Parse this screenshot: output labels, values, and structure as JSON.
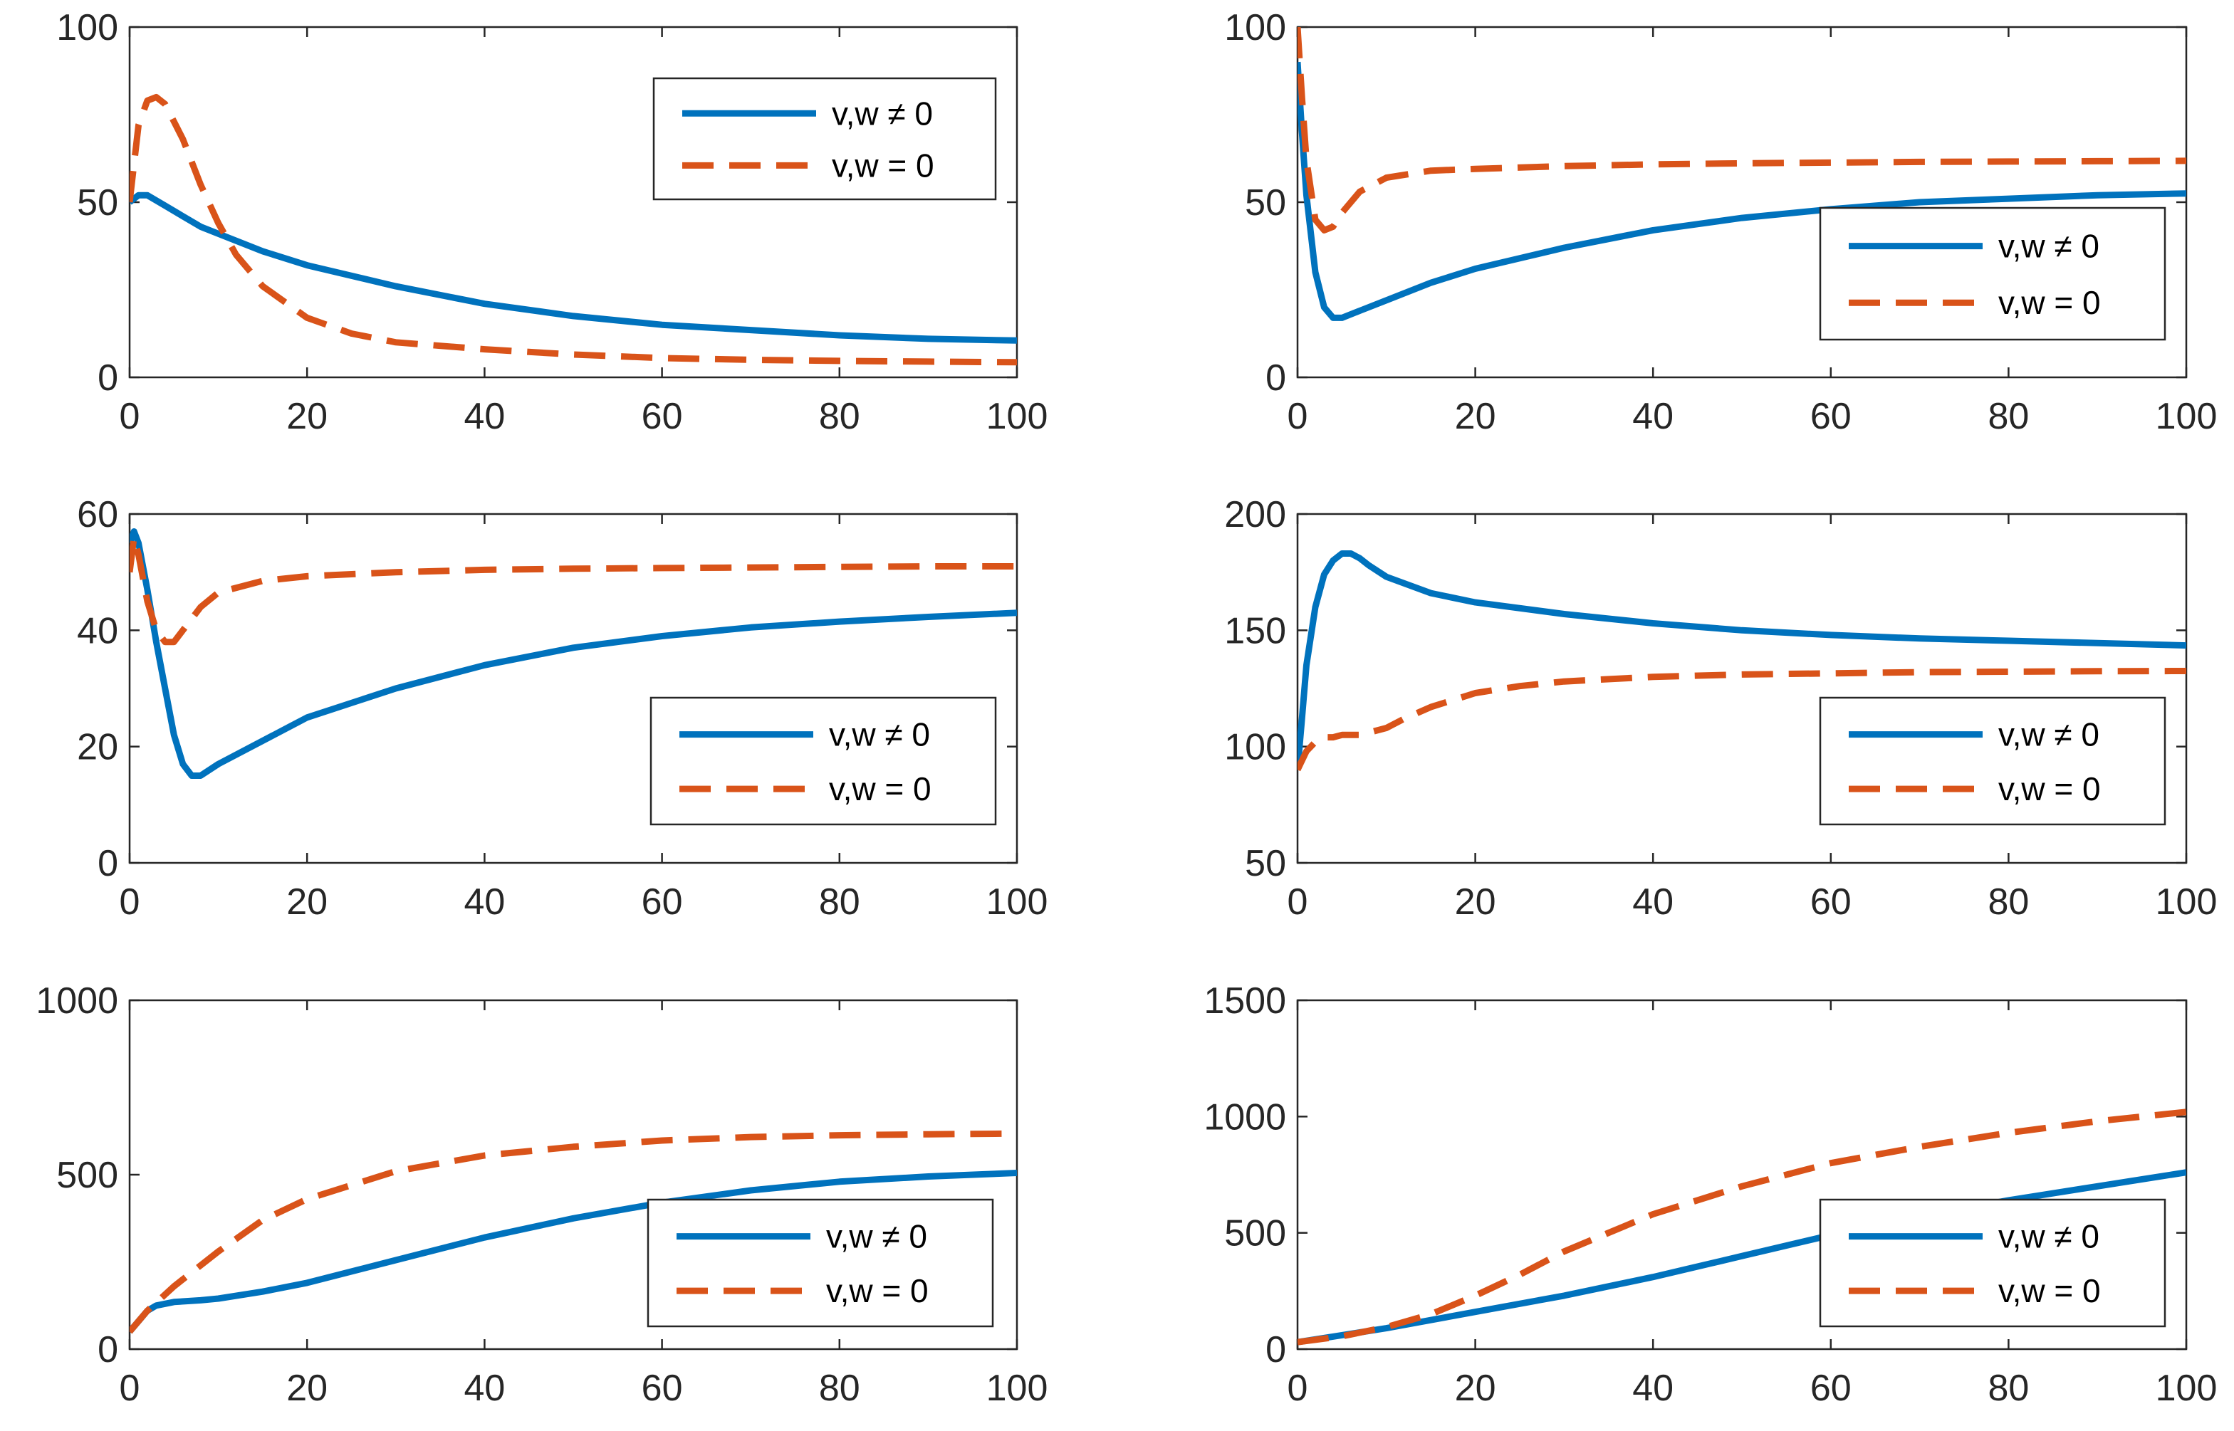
{
  "chart_data": [
    {
      "type": "line",
      "title": "",
      "xlabel": "",
      "ylabel": "",
      "xlim": [
        0,
        100
      ],
      "ylim": [
        0,
        100
      ],
      "xticks": [
        "0",
        "20",
        "40",
        "60",
        "80",
        "100"
      ],
      "yticks": [
        "0",
        "50",
        "100"
      ],
      "legend_position": "top-right",
      "series": [
        {
          "name": "v,w ≠ 0",
          "style": "solid",
          "color": "#0072BD",
          "x": [
            0,
            1,
            2,
            4,
            6,
            8,
            10,
            15,
            20,
            30,
            40,
            50,
            60,
            70,
            80,
            90,
            100
          ],
          "y": [
            50,
            52,
            52,
            49,
            46,
            43,
            41,
            36,
            32,
            26,
            21,
            17.5,
            15,
            13.5,
            12,
            11,
            10.5
          ]
        },
        {
          "name": "v,w = 0",
          "style": "dashed",
          "color": "#D95319",
          "x": [
            0,
            1,
            2,
            3,
            4,
            6,
            8,
            10,
            12,
            15,
            20,
            25,
            30,
            40,
            50,
            60,
            70,
            80,
            90,
            100
          ],
          "y": [
            50,
            72,
            79,
            80,
            78,
            68,
            55,
            44,
            35,
            26,
            17,
            12.5,
            10,
            8,
            6.5,
            5.5,
            5,
            4.7,
            4.5,
            4.3
          ]
        }
      ]
    },
    {
      "type": "line",
      "title": "",
      "xlabel": "",
      "ylabel": "",
      "xlim": [
        0,
        100
      ],
      "ylim": [
        0,
        100
      ],
      "xticks": [
        "0",
        "20",
        "40",
        "60",
        "80",
        "100"
      ],
      "yticks": [
        "0",
        "50",
        "100"
      ],
      "legend_position": "right",
      "series": [
        {
          "name": "v,w ≠ 0",
          "style": "solid",
          "color": "#0072BD",
          "x": [
            0,
            0.5,
            1,
            2,
            3,
            4,
            5,
            7,
            10,
            15,
            20,
            30,
            40,
            50,
            60,
            70,
            80,
            90,
            100
          ],
          "y": [
            90,
            70,
            52,
            30,
            20,
            17,
            17,
            19,
            22,
            27,
            31,
            37,
            42,
            45.5,
            48,
            50,
            51,
            52,
            52.5
          ]
        },
        {
          "name": "v,w = 0",
          "style": "dashed",
          "color": "#D95319",
          "x": [
            0,
            0.5,
            1,
            2,
            3,
            4,
            5,
            7,
            10,
            15,
            20,
            30,
            40,
            50,
            60,
            70,
            80,
            90,
            100
          ],
          "y": [
            100,
            80,
            62,
            45,
            42,
            43,
            47,
            53,
            57,
            59,
            59.5,
            60.3,
            60.8,
            61.1,
            61.3,
            61.5,
            61.6,
            61.7,
            61.8
          ]
        }
      ]
    },
    {
      "type": "line",
      "title": "",
      "xlabel": "",
      "ylabel": "",
      "xlim": [
        0,
        100
      ],
      "ylim": [
        0,
        60
      ],
      "xticks": [
        "0",
        "20",
        "40",
        "60",
        "80",
        "100"
      ],
      "yticks": [
        "0",
        "20",
        "40",
        "60"
      ],
      "legend_position": "right",
      "series": [
        {
          "name": "v,w ≠ 0",
          "style": "solid",
          "color": "#0072BD",
          "x": [
            0,
            0.5,
            1,
            2,
            3,
            4,
            5,
            6,
            7,
            8,
            10,
            15,
            20,
            30,
            40,
            50,
            60,
            70,
            80,
            90,
            100
          ],
          "y": [
            55,
            57,
            55,
            47,
            38,
            30,
            22,
            17,
            15,
            15,
            17,
            21,
            25,
            30,
            34,
            37,
            39,
            40.5,
            41.5,
            42.3,
            43
          ]
        },
        {
          "name": "v,w = 0",
          "style": "dashed",
          "color": "#D95319",
          "x": [
            0,
            0.5,
            1,
            2,
            3,
            4,
            5,
            6,
            8,
            10,
            15,
            20,
            30,
            40,
            50,
            60,
            70,
            80,
            90,
            100
          ],
          "y": [
            50,
            56,
            53,
            45,
            40,
            38,
            38,
            40,
            44,
            46.5,
            48.5,
            49.3,
            50,
            50.4,
            50.6,
            50.7,
            50.8,
            50.9,
            51,
            51
          ]
        }
      ]
    },
    {
      "type": "line",
      "title": "",
      "xlabel": "",
      "ylabel": "",
      "xlim": [
        0,
        100
      ],
      "ylim": [
        50,
        200
      ],
      "xticks": [
        "0",
        "20",
        "40",
        "60",
        "80",
        "100"
      ],
      "yticks": [
        "50",
        "100",
        "150",
        "200"
      ],
      "legend_position": "right",
      "series": [
        {
          "name": "v,w ≠ 0",
          "style": "solid",
          "color": "#0072BD",
          "x": [
            0,
            0.5,
            1,
            2,
            3,
            4,
            5,
            6,
            7,
            8,
            10,
            15,
            20,
            30,
            40,
            50,
            60,
            70,
            80,
            90,
            100
          ],
          "y": [
            90,
            112,
            135,
            160,
            174,
            180,
            183,
            183,
            181,
            178,
            173,
            166,
            162,
            157,
            153,
            150,
            148,
            146.5,
            145.5,
            144.5,
            143.5
          ]
        },
        {
          "name": "v,w = 0",
          "style": "dashed",
          "color": "#D95319",
          "x": [
            0,
            1,
            2,
            3,
            4,
            5,
            6,
            7,
            8,
            10,
            12,
            15,
            20,
            25,
            30,
            40,
            50,
            60,
            70,
            80,
            90,
            100
          ],
          "y": [
            90,
            98,
            102,
            104,
            104,
            105,
            105,
            105,
            106,
            108,
            112,
            117,
            123,
            126,
            128,
            130,
            131,
            131.5,
            132,
            132.2,
            132.4,
            132.5
          ]
        }
      ]
    },
    {
      "type": "line",
      "title": "",
      "xlabel": "",
      "ylabel": "",
      "xlim": [
        0,
        100
      ],
      "ylim": [
        0,
        1000
      ],
      "xticks": [
        "0",
        "20",
        "40",
        "60",
        "80",
        "100"
      ],
      "yticks": [
        "0",
        "500",
        "1000"
      ],
      "legend_position": "bottom-right",
      "series": [
        {
          "name": "v,w ≠ 0",
          "style": "solid",
          "color": "#0072BD",
          "x": [
            0,
            1,
            2,
            3,
            5,
            8,
            10,
            15,
            20,
            30,
            40,
            50,
            60,
            70,
            80,
            90,
            100
          ],
          "y": [
            50,
            80,
            110,
            125,
            135,
            140,
            145,
            165,
            190,
            255,
            320,
            375,
            420,
            455,
            480,
            495,
            505
          ]
        },
        {
          "name": "v,w = 0",
          "style": "dashed",
          "color": "#D95319",
          "x": [
            0,
            2,
            5,
            10,
            15,
            20,
            30,
            40,
            50,
            60,
            70,
            80,
            90,
            100
          ],
          "y": [
            50,
            110,
            180,
            280,
            370,
            430,
            510,
            555,
            580,
            598,
            608,
            613,
            616,
            618
          ]
        }
      ]
    },
    {
      "type": "line",
      "title": "",
      "xlabel": "",
      "ylabel": "",
      "xlim": [
        0,
        100
      ],
      "ylim": [
        0,
        1500
      ],
      "xticks": [
        "0",
        "20",
        "40",
        "60",
        "80",
        "100"
      ],
      "yticks": [
        "0",
        "500",
        "1000",
        "1500"
      ],
      "legend_position": "bottom-right",
      "series": [
        {
          "name": "v,w ≠ 0",
          "style": "solid",
          "color": "#0072BD",
          "x": [
            0,
            5,
            10,
            20,
            30,
            40,
            50,
            60,
            70,
            80,
            90,
            100
          ],
          "y": [
            30,
            60,
            90,
            160,
            230,
            310,
            400,
            490,
            570,
            640,
            700,
            760
          ]
        },
        {
          "name": "v,w = 0",
          "style": "dashed",
          "color": "#D95319",
          "x": [
            0,
            5,
            10,
            15,
            20,
            25,
            30,
            40,
            50,
            60,
            70,
            80,
            90,
            100
          ],
          "y": [
            30,
            55,
            95,
            150,
            230,
            320,
            420,
            580,
            700,
            800,
            870,
            930,
            980,
            1020
          ]
        }
      ]
    }
  ]
}
